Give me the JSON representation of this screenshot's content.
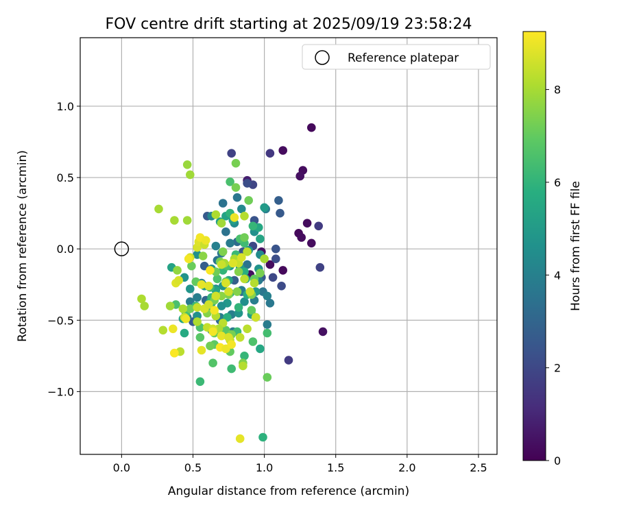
{
  "chart_data": {
    "type": "scatter",
    "title": "FOV centre drift starting at 2025/09/19 23:58:24",
    "xlabel": "Angular distance from reference (arcmin)",
    "ylabel": "Rotation from reference (arcmin)",
    "xlim": [
      -0.29,
      2.63
    ],
    "ylim": [
      -1.44,
      1.48
    ],
    "xticks": [
      0.0,
      0.5,
      1.0,
      1.5,
      2.0,
      2.5
    ],
    "xtick_labels": [
      "0.0",
      "0.5",
      "1.0",
      "1.5",
      "2.0",
      "2.5"
    ],
    "yticks": [
      -1.0,
      -0.5,
      0.0,
      0.5,
      1.0
    ],
    "ytick_labels": [
      "−1.0",
      "−0.5",
      "0.0",
      "0.5",
      "1.0"
    ],
    "grid": true,
    "legend": {
      "position": "top-right",
      "entries": [
        "Reference platepar"
      ]
    },
    "reference_point": {
      "x": 0.0,
      "y": 0.0,
      "label": "Reference platepar"
    },
    "colorbar": {
      "label": "Hours from first FF file",
      "colormap": "viridis",
      "range": [
        0,
        9.25
      ],
      "ticks": [
        0,
        2,
        4,
        6,
        8
      ],
      "tick_labels": [
        "0",
        "2",
        "4",
        "6",
        "8"
      ]
    },
    "points": [
      [
        1.33,
        0.85,
        0.2
      ],
      [
        1.13,
        0.69,
        0.3
      ],
      [
        1.27,
        0.55,
        0.3
      ],
      [
        1.25,
        0.51,
        0.4
      ],
      [
        1.3,
        0.18,
        0.3
      ],
      [
        1.24,
        0.11,
        0.2
      ],
      [
        1.26,
        0.08,
        0.3
      ],
      [
        1.33,
        0.04,
        0.3
      ],
      [
        1.41,
        -0.58,
        0.4
      ],
      [
        1.13,
        -0.15,
        0.2
      ],
      [
        1.04,
        -0.11,
        0.3
      ],
      [
        0.98,
        -0.02,
        0.4
      ],
      [
        0.88,
        0.48,
        0.8
      ],
      [
        0.9,
        -0.18,
        0.4
      ],
      [
        1.04,
        0.67,
        1.5
      ],
      [
        0.77,
        0.67,
        1.8
      ],
      [
        0.92,
        0.45,
        1.9
      ],
      [
        1.38,
        0.16,
        1.6
      ],
      [
        1.39,
        -0.13,
        1.8
      ],
      [
        1.17,
        -0.78,
        1.6
      ],
      [
        1.06,
        -0.2,
        2.0
      ],
      [
        1.12,
        -0.26,
        2.1
      ],
      [
        1.08,
        -0.07,
        2.2
      ],
      [
        0.92,
        0.02,
        2.0
      ],
      [
        0.88,
        0.46,
        2.2
      ],
      [
        1.11,
        0.25,
        2.6
      ],
      [
        1.1,
        0.34,
        2.8
      ],
      [
        1.08,
        0.0,
        2.4
      ],
      [
        0.93,
        0.2,
        2.4
      ],
      [
        0.6,
        0.23,
        2.6
      ],
      [
        0.85,
        -0.02,
        2.5
      ],
      [
        0.98,
        -0.2,
        2.6
      ],
      [
        0.84,
        -0.3,
        2.8
      ],
      [
        0.79,
        -0.22,
        2.8
      ],
      [
        0.58,
        -0.12,
        2.7
      ],
      [
        0.5,
        -0.51,
        2.6
      ],
      [
        0.59,
        -0.36,
        3.0
      ],
      [
        0.69,
        -0.5,
        3.1
      ],
      [
        0.6,
        -0.44,
        3.0
      ],
      [
        0.81,
        0.05,
        3.2
      ],
      [
        0.71,
        0.32,
        3.5
      ],
      [
        0.81,
        0.36,
        3.6
      ],
      [
        0.73,
        0.12,
        3.5
      ],
      [
        1.01,
        0.28,
        3.9
      ],
      [
        0.96,
        -0.22,
        3.8
      ],
      [
        0.99,
        -0.3,
        3.6
      ],
      [
        1.02,
        -0.33,
        4.0
      ],
      [
        1.04,
        -0.38,
        3.7
      ],
      [
        1.02,
        -0.53,
        3.8
      ],
      [
        0.84,
        -0.29,
        3.9
      ],
      [
        0.77,
        -0.46,
        3.9
      ],
      [
        0.69,
        -0.48,
        3.9
      ],
      [
        0.56,
        -0.24,
        3.9
      ],
      [
        0.48,
        -0.37,
        3.8
      ],
      [
        0.46,
        -0.48,
        3.6
      ],
      [
        0.67,
        -0.08,
        3.5
      ],
      [
        0.7,
        -0.03,
        3.6
      ],
      [
        0.76,
        0.04,
        3.8
      ],
      [
        0.88,
        -0.11,
        3.5
      ],
      [
        0.93,
        -0.36,
        3.9
      ],
      [
        0.63,
        -0.57,
        4.0
      ],
      [
        0.78,
        -0.58,
        3.8
      ],
      [
        0.53,
        -0.34,
        3.9
      ],
      [
        0.66,
        0.02,
        4.0
      ],
      [
        0.63,
        0.23,
        4.2
      ],
      [
        0.84,
        0.28,
        4.3
      ],
      [
        0.93,
        0.12,
        4.6
      ],
      [
        0.79,
        0.18,
        4.4
      ],
      [
        1.0,
        0.29,
        5.0
      ],
      [
        0.96,
        -0.14,
        4.7
      ],
      [
        0.94,
        -0.3,
        5.0
      ],
      [
        0.82,
        -0.45,
        4.8
      ],
      [
        0.74,
        -0.38,
        4.9
      ],
      [
        0.61,
        -0.42,
        4.5
      ],
      [
        0.53,
        -0.47,
        4.6
      ],
      [
        0.48,
        -0.28,
        4.8
      ],
      [
        0.44,
        -0.2,
        4.7
      ],
      [
        0.53,
        -0.04,
        4.6
      ],
      [
        0.66,
        -0.28,
        4.3
      ],
      [
        0.71,
        -0.26,
        4.8
      ],
      [
        0.7,
        -0.4,
        4.6
      ],
      [
        0.83,
        -0.13,
        4.9
      ],
      [
        0.86,
        -0.37,
        4.5
      ],
      [
        0.58,
        -0.26,
        4.9
      ],
      [
        0.89,
        -0.01,
        4.7
      ],
      [
        0.97,
        -0.04,
        4.4
      ],
      [
        0.76,
        -0.12,
        4.9
      ],
      [
        0.63,
        -0.14,
        4.5
      ],
      [
        0.78,
        0.2,
        5.1
      ],
      [
        0.96,
        0.15,
        5.5
      ],
      [
        0.97,
        0.07,
        5.4
      ],
      [
        0.73,
        0.23,
        5.3
      ],
      [
        0.69,
        0.19,
        5.2
      ],
      [
        0.35,
        -0.13,
        5.3
      ],
      [
        0.43,
        -0.49,
        5.4
      ],
      [
        0.44,
        -0.59,
        5.6
      ],
      [
        0.76,
        -0.31,
        5.5
      ],
      [
        0.86,
        -0.16,
        5.8
      ],
      [
        0.88,
        -0.32,
        5.7
      ],
      [
        0.91,
        -0.46,
        5.2
      ],
      [
        0.94,
        -0.48,
        5.6
      ],
      [
        0.97,
        -0.7,
        5.5
      ],
      [
        0.75,
        -0.22,
        5.3
      ],
      [
        0.62,
        -0.37,
        5.2
      ],
      [
        0.66,
        -0.29,
        5.4
      ],
      [
        0.63,
        -0.38,
        5.6
      ],
      [
        0.74,
        -0.48,
        5.8
      ],
      [
        0.87,
        -0.21,
        5.4
      ],
      [
        0.82,
        -0.41,
        6.0
      ],
      [
        0.86,
        -0.75,
        6.1
      ],
      [
        0.77,
        -0.84,
        6.3
      ],
      [
        0.99,
        -1.32,
        5.9
      ],
      [
        0.55,
        -0.93,
        6.2
      ],
      [
        0.81,
        -0.58,
        6.2
      ],
      [
        0.68,
        -0.57,
        6.3
      ],
      [
        0.62,
        -0.27,
        6.3
      ],
      [
        0.63,
        -0.34,
        6.1
      ],
      [
        0.71,
        -0.15,
        6.0
      ],
      [
        0.8,
        -0.04,
        6.2
      ],
      [
        0.86,
        0.04,
        6.3
      ],
      [
        0.76,
        0.47,
        6.5
      ],
      [
        0.92,
        0.16,
        6.1
      ],
      [
        0.76,
        0.25,
        6.0
      ],
      [
        0.83,
        0.07,
        6.5
      ],
      [
        0.67,
        -0.21,
        6.6
      ],
      [
        0.74,
        -0.12,
        6.5
      ],
      [
        0.52,
        -0.4,
        6.2
      ],
      [
        0.55,
        -0.55,
        6.6
      ],
      [
        0.45,
        -0.45,
        6.4
      ],
      [
        0.38,
        -0.39,
        6.5
      ],
      [
        0.55,
        -0.62,
        6.8
      ],
      [
        0.64,
        -0.8,
        6.7
      ],
      [
        0.65,
        -0.67,
        6.9
      ],
      [
        0.73,
        -0.57,
        6.8
      ],
      [
        0.92,
        -0.65,
        6.6
      ],
      [
        1.02,
        -0.59,
        6.4
      ],
      [
        1.02,
        -0.9,
        7.1
      ],
      [
        0.76,
        -0.72,
        7.0
      ],
      [
        0.91,
        -0.43,
        7.0
      ],
      [
        0.8,
        0.6,
        7.3
      ],
      [
        0.89,
        0.34,
        7.2
      ],
      [
        0.8,
        0.43,
        7.3
      ],
      [
        0.86,
        0.08,
        7.2
      ],
      [
        0.93,
        -0.21,
        7.0
      ],
      [
        0.97,
        -0.17,
        7.3
      ],
      [
        0.91,
        -0.32,
        7.5
      ],
      [
        0.75,
        -0.32,
        7.4
      ],
      [
        0.7,
        -0.33,
        7.6
      ],
      [
        0.73,
        -0.23,
        7.1
      ],
      [
        0.82,
        -0.16,
        7.5
      ],
      [
        0.69,
        -0.09,
        7.3
      ],
      [
        0.66,
        -0.16,
        7.2
      ],
      [
        0.71,
        -0.02,
        7.4
      ],
      [
        0.57,
        -0.05,
        7.6
      ],
      [
        0.49,
        -0.12,
        7.1
      ],
      [
        0.52,
        -0.23,
        7.0
      ],
      [
        0.6,
        -0.45,
        7.5
      ],
      [
        0.65,
        -0.36,
        7.3
      ],
      [
        0.48,
        -0.42,
        7.2
      ],
      [
        0.39,
        -0.15,
        7.7
      ],
      [
        0.65,
        -0.59,
        7.1
      ],
      [
        0.62,
        -0.68,
        7.2
      ],
      [
        0.77,
        -0.6,
        7.3
      ],
      [
        0.85,
        -0.8,
        7.4
      ],
      [
        0.81,
        -0.3,
        7.5
      ],
      [
        0.46,
        0.59,
        7.8
      ],
      [
        0.48,
        0.52,
        7.9
      ],
      [
        0.26,
        0.28,
        8.0
      ],
      [
        0.37,
        0.2,
        8.0
      ],
      [
        0.46,
        0.2,
        7.9
      ],
      [
        0.66,
        0.24,
        8.1
      ],
      [
        0.7,
        0.18,
        7.9
      ],
      [
        0.86,
        0.23,
        8.2
      ],
      [
        0.88,
        -0.02,
        8.3
      ],
      [
        0.72,
        -0.1,
        8.0
      ],
      [
        0.79,
        -0.07,
        8.1
      ],
      [
        0.93,
        -0.24,
        8.2
      ],
      [
        1.0,
        -0.07,
        8.0
      ],
      [
        0.86,
        -0.21,
        8.3
      ],
      [
        0.14,
        -0.35,
        8.1
      ],
      [
        0.16,
        -0.4,
        8.0
      ],
      [
        0.43,
        -0.42,
        8.1
      ],
      [
        0.34,
        -0.4,
        7.9
      ],
      [
        0.29,
        -0.57,
        8.2
      ],
      [
        0.37,
        -0.73,
        8.0
      ],
      [
        0.41,
        -0.72,
        8.3
      ],
      [
        0.53,
        -0.51,
        8.1
      ],
      [
        0.6,
        -0.55,
        8.4
      ],
      [
        0.66,
        -0.47,
        8.2
      ],
      [
        0.71,
        -0.52,
        8.3
      ],
      [
        0.68,
        -0.56,
        8.1
      ],
      [
        0.76,
        -0.64,
        8.4
      ],
      [
        0.88,
        -0.56,
        8.3
      ],
      [
        0.85,
        -0.82,
        8.2
      ],
      [
        0.83,
        -0.62,
        8.4
      ],
      [
        0.75,
        -0.3,
        8.6
      ],
      [
        0.82,
        -0.1,
        8.5
      ],
      [
        0.84,
        -0.06,
        8.7
      ],
      [
        0.78,
        -0.1,
        8.8
      ],
      [
        0.9,
        -0.3,
        8.5
      ],
      [
        0.94,
        -0.48,
        8.6
      ],
      [
        0.7,
        -0.11,
        8.5
      ],
      [
        0.73,
        -0.24,
        8.7
      ],
      [
        0.66,
        -0.33,
        8.6
      ],
      [
        0.61,
        -0.26,
        8.8
      ],
      [
        0.53,
        -0.41,
        8.5
      ],
      [
        0.58,
        -0.42,
        8.7
      ],
      [
        0.64,
        -0.56,
        8.6
      ],
      [
        0.7,
        -0.61,
        8.9
      ],
      [
        0.75,
        -0.62,
        8.7
      ],
      [
        0.44,
        -0.48,
        8.5
      ],
      [
        0.48,
        -0.06,
        8.6
      ],
      [
        0.53,
        0.01,
        8.7
      ],
      [
        0.54,
        0.05,
        8.8
      ],
      [
        0.58,
        0.03,
        8.5
      ],
      [
        0.56,
        -0.25,
        8.9
      ],
      [
        0.61,
        -0.39,
        8.6
      ],
      [
        0.38,
        -0.24,
        8.8
      ],
      [
        0.4,
        -0.22,
        8.7
      ],
      [
        0.56,
        -0.71,
        8.9
      ],
      [
        0.36,
        -0.56,
        9.0
      ],
      [
        0.37,
        -0.73,
        9.2
      ],
      [
        0.55,
        0.08,
        9.1
      ],
      [
        0.59,
        0.06,
        9.0
      ],
      [
        0.64,
        -0.58,
        9.1
      ],
      [
        0.69,
        -0.69,
        9.2
      ],
      [
        0.73,
        -0.7,
        9.0
      ],
      [
        0.77,
        -0.67,
        9.1
      ],
      [
        0.83,
        -1.33,
        8.9
      ],
      [
        0.79,
        0.22,
        9.0
      ],
      [
        0.62,
        -0.15,
        9.2
      ],
      [
        0.65,
        -0.43,
        9.1
      ],
      [
        0.45,
        -0.49,
        9.0
      ],
      [
        0.47,
        -0.07,
        9.1
      ]
    ]
  }
}
